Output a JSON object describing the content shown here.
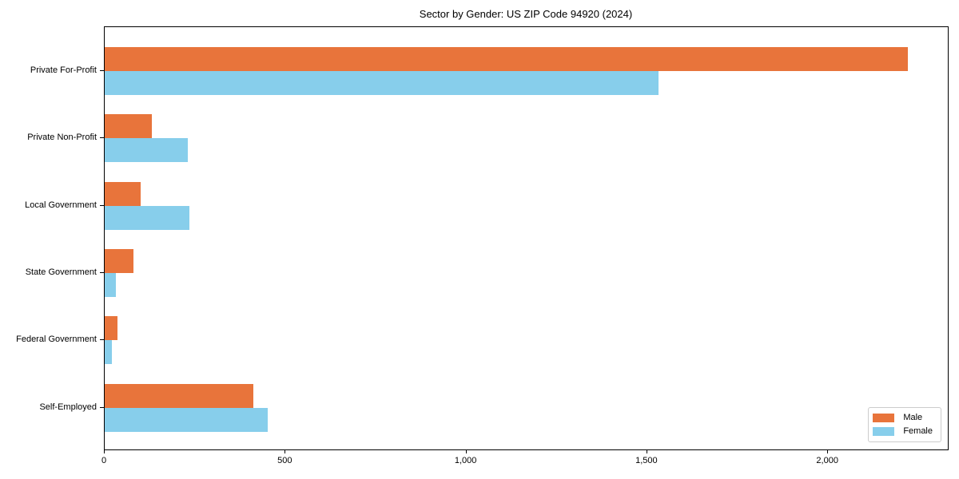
{
  "chart_data": {
    "type": "bar",
    "orientation": "horizontal",
    "title": "Sector by Gender: US ZIP Code 94920 (2024)",
    "categories": [
      "Private For-Profit",
      "Private Non-Profit",
      "Local Government",
      "State Government",
      "Federal Government",
      "Self-Employed"
    ],
    "series": [
      {
        "name": "Male",
        "color": "#e8743b",
        "values": [
          2220,
          130,
          100,
          80,
          35,
          410
        ]
      },
      {
        "name": "Female",
        "color": "#87ceeb",
        "values": [
          1530,
          230,
          235,
          30,
          20,
          450
        ]
      }
    ],
    "xlabel": "",
    "ylabel": "",
    "xlim": [
      0,
      2331
    ],
    "xticks": [
      0,
      500,
      1000,
      1500,
      2000
    ],
    "xtick_labels": [
      "0",
      "500",
      "1,000",
      "1,500",
      "2,000"
    ],
    "grid": false,
    "legend": {
      "position": "lower right",
      "entries": [
        "Male",
        "Female"
      ]
    },
    "colors": {
      "background": "#ffffff",
      "axis": "#000000",
      "text": "#000000",
      "legend_border": "#cccccc"
    }
  }
}
